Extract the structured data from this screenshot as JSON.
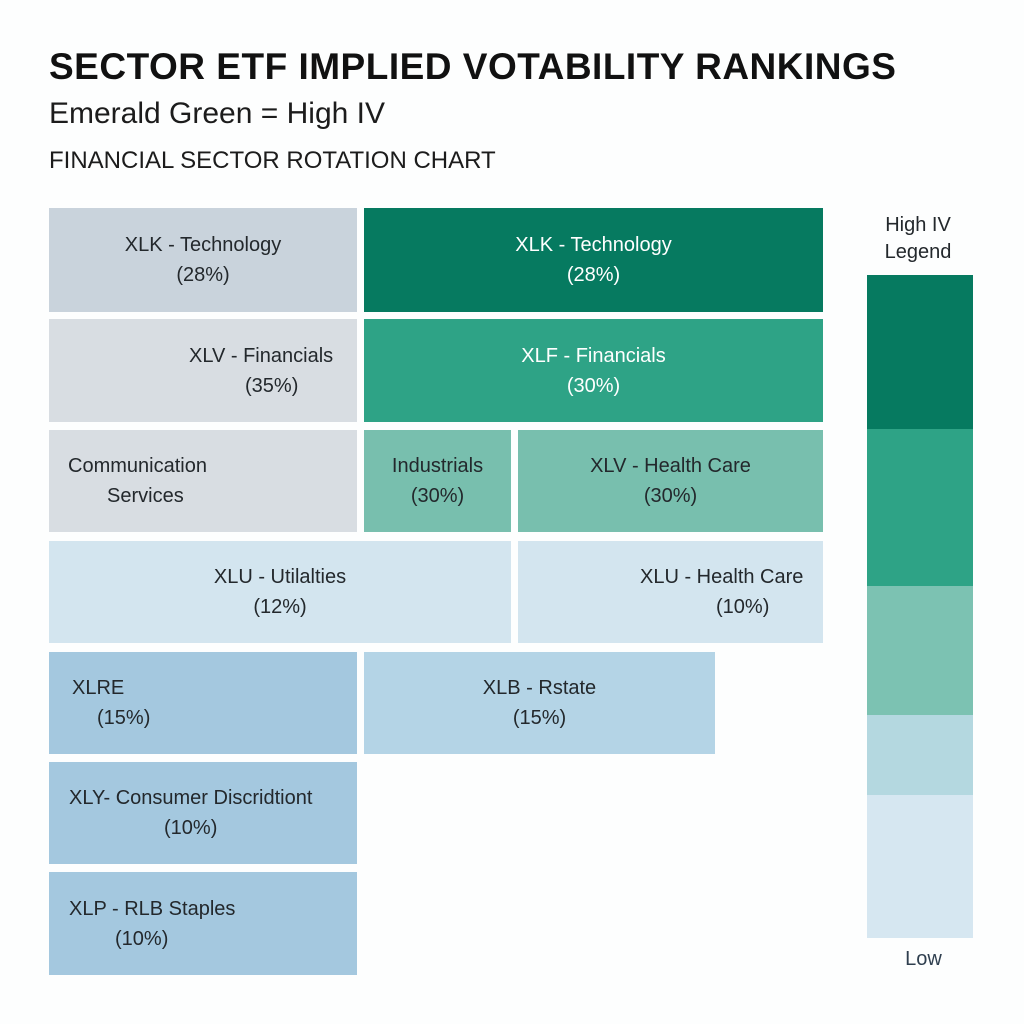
{
  "chart_data": {
    "type": "treemap",
    "title": "SECTOR ETF IMPLIED VOTABILITY RANKINGS",
    "subtitle": "Emerald Green = High IV",
    "caption": "FINANCIAL SECTOR ROTATION CHART",
    "tiles": [
      {
        "label": "XLK - Technology",
        "value": "(28%)",
        "color": "#c9d3dc"
      },
      {
        "label": "XLK - Technology",
        "value": "(28%)",
        "color": "#067a60"
      },
      {
        "label": "XLV - Financials",
        "value": "(35%)",
        "color": "#d8dde2"
      },
      {
        "label": "XLF - Financials",
        "value": "(30%)",
        "color": "#2ea386"
      },
      {
        "label": "Communication",
        "value": "Services",
        "color": "#d8dde2"
      },
      {
        "label": "Industrials",
        "value": "(30%)",
        "color": "#78bfae"
      },
      {
        "label": "XLV - Health Care",
        "value": "(30%)",
        "color": "#78bfae"
      },
      {
        "label": "XLU - Utilalties",
        "value": "(12%)",
        "color": "#d3e5ef"
      },
      {
        "label": "XLU - Health Care",
        "value": "(10%)",
        "color": "#d3e5ef"
      },
      {
        "label": "XLRE",
        "value": "(15%)",
        "color": "#a4c8df"
      },
      {
        "label": "XLB - Rstate",
        "value": "(15%)",
        "color": "#b4d4e6"
      },
      {
        "label": "XLY- Consumer Discridtiont",
        "value": "(10%)",
        "color": "#a4c8df"
      },
      {
        "label": "XLP - RLB Staples",
        "value": "(10%)",
        "color": "#a4c8df"
      }
    ],
    "legend": {
      "title": "High IV Legend",
      "low_label": "Low",
      "colors": [
        "#067a60",
        "#2ea386",
        "#7cc2b2",
        "#b4d8e0",
        "#d6e7f1"
      ]
    }
  }
}
